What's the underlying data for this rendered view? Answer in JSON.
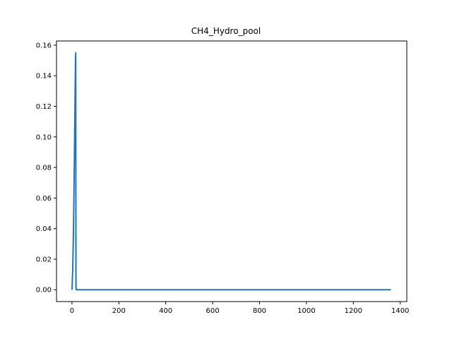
{
  "chart_data": {
    "type": "line",
    "title": "CH4_Hydro_pool",
    "xlabel": "",
    "ylabel": "",
    "xlim": [
      -66,
      1428
    ],
    "ylim": [
      -0.00775,
      0.16275
    ],
    "grid": false,
    "x_ticks": [
      0,
      200,
      400,
      600,
      800,
      1000,
      1200,
      1400
    ],
    "x_tick_labels": [
      "0",
      "200",
      "400",
      "600",
      "800",
      "1000",
      "1200",
      "1400"
    ],
    "y_ticks": [
      0.0,
      0.02,
      0.04,
      0.06,
      0.08,
      0.1,
      0.12,
      0.14,
      0.16
    ],
    "y_tick_labels": [
      "0.00",
      "0.02",
      "0.04",
      "0.06",
      "0.08",
      "0.10",
      "0.12",
      "0.14",
      "0.16"
    ],
    "series": [
      {
        "color": "#1f77b4",
        "x": [
          0,
          3,
          6,
          9,
          12,
          15,
          16,
          17,
          18,
          400,
          800,
          1200,
          1360
        ],
        "y": [
          0.0,
          0.012,
          0.035,
          0.07,
          0.11,
          0.15,
          0.155,
          0.002,
          0.0,
          0.0,
          0.0,
          0.0,
          0.0
        ]
      }
    ]
  }
}
